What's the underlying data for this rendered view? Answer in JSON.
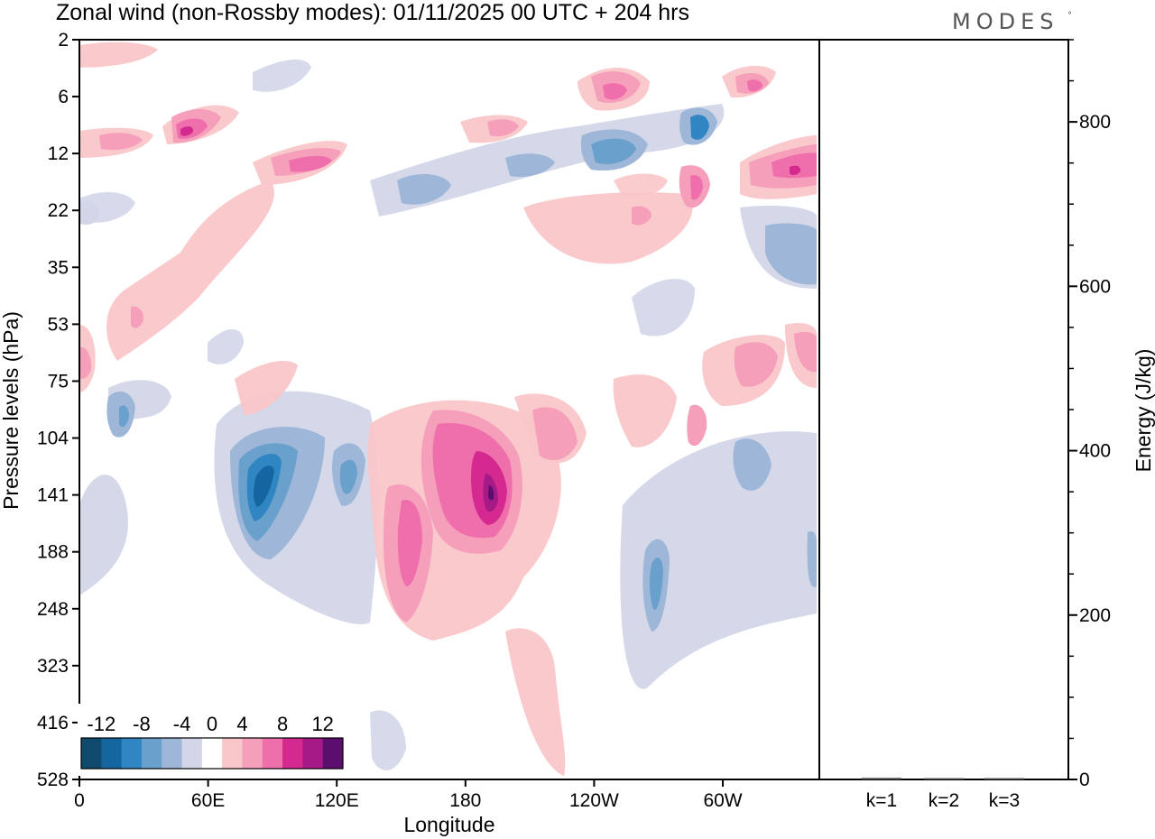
{
  "chart_data": [
    {
      "type": "heatmap",
      "title": "Zonal wind (non-Rossby modes):  01/11/2025  00 UTC  + 204 hrs",
      "xlabel": "Longitude",
      "ylabel": "Pressure levels (hPa)",
      "x_ticks": [
        "0",
        "60E",
        "120E",
        "180",
        "120W",
        "60W"
      ],
      "x_tick_degrees": [
        0,
        60,
        120,
        180,
        240,
        300
      ],
      "x_range_degrees": [
        0,
        345
      ],
      "y_ticks": [
        "2",
        "6",
        "12",
        "22",
        "35",
        "53",
        "75",
        "104",
        "141",
        "188",
        "248",
        "323",
        "416",
        "528"
      ],
      "colorbar": {
        "labels": [
          "-12",
          "-8",
          "-4",
          "0",
          "4",
          "8",
          "12"
        ],
        "levels": [
          -14,
          -12,
          -10,
          -8,
          -6,
          -4,
          -2,
          2,
          4,
          6,
          8,
          10,
          12,
          14
        ],
        "colors": [
          "#0d4a6b",
          "#1565a0",
          "#2f86c3",
          "#6aa0cc",
          "#9eb7d8",
          "#d2d6e8",
          "#ffffff",
          "#f9c6c9",
          "#f59fbb",
          "#ef6fac",
          "#d42a8f",
          "#a51a86",
          "#5c0e6e"
        ]
      },
      "features": [
        {
          "sign": "negative",
          "level": -12,
          "lon": 82,
          "pressure": 141
        },
        {
          "sign": "positive",
          "level": 12,
          "lon": 192,
          "pressure": 141
        },
        {
          "sign": "positive",
          "level": 8,
          "lon": 160,
          "pressure": 160
        },
        {
          "sign": "negative",
          "level": -10,
          "lon": 270,
          "pressure": 230
        },
        {
          "sign": "negative",
          "level": -10,
          "lon": 250,
          "pressure": 12
        },
        {
          "sign": "negative",
          "level": -10,
          "lon": 287,
          "pressure": 9
        },
        {
          "sign": "negative",
          "level": -8,
          "lon": 335,
          "pressure": 28
        },
        {
          "sign": "positive",
          "level": 10,
          "lon": 48,
          "pressure": 9
        },
        {
          "sign": "positive",
          "level": 8,
          "lon": 110,
          "pressure": 14
        },
        {
          "sign": "positive",
          "level": 8,
          "lon": 335,
          "pressure": 13
        },
        {
          "sign": "positive",
          "level": 8,
          "lon": 290,
          "pressure": 20
        },
        {
          "sign": "positive",
          "level": 8,
          "lon": 250,
          "pressure": 6
        },
        {
          "sign": "positive",
          "level": 8,
          "lon": 330,
          "pressure": 75
        },
        {
          "sign": "positive",
          "level": 6,
          "lon": 295,
          "pressure": 120
        }
      ]
    },
    {
      "type": "bar",
      "categories": [
        "k=1",
        "k=2",
        "k=3"
      ],
      "values": [
        2,
        1,
        0.5
      ],
      "ylabel": "Energy (J/kg)",
      "ylim": [
        0,
        900
      ],
      "y_ticks": [
        "0",
        "200",
        "400",
        "600",
        "800"
      ],
      "y_tick_values": [
        0,
        200,
        400,
        600,
        800
      ]
    }
  ],
  "logo": {
    "text": "MODES",
    "mark": "°"
  }
}
